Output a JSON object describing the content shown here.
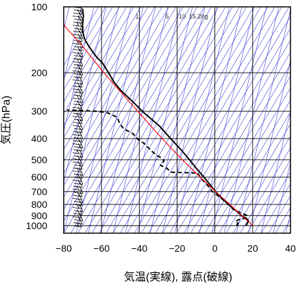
{
  "chart_data": {
    "type": "line",
    "subtype": "skew-t log-p sounding",
    "xlabel": "気温(実線), 露点(破線)",
    "ylabel": "気圧(hPa)",
    "xlim": [
      -80,
      40
    ],
    "ylim": [
      1050,
      100
    ],
    "y_scale": "log",
    "x_ticks": [
      -80,
      -60,
      -40,
      -20,
      0,
      20,
      40
    ],
    "x_tick_labels": [
      "−80",
      "−60",
      "−40",
      "−20",
      "0",
      "20",
      "40"
    ],
    "y_ticks": [
      100,
      200,
      300,
      400,
      500,
      600,
      700,
      800,
      900,
      1000
    ],
    "y_tick_labels": [
      "100",
      "200",
      "300",
      "400",
      "500",
      "600",
      "700",
      "800",
      "900",
      "1000"
    ],
    "mixing_ratio_labels": [
      "1",
      "5",
      "10",
      "15",
      "20g"
    ],
    "grid": true,
    "colors": {
      "temperature": "#000000",
      "dewpoint": "#000000",
      "parcel": "#ff0000",
      "guide_lines": "#3a3ad6",
      "grid": "#000000"
    },
    "series": [
      {
        "role": "temperature",
        "style": "solid",
        "points": [
          [
            1000,
            16.5
          ],
          [
            950,
            17.8
          ],
          [
            925,
            16.5
          ],
          [
            900,
            14.0
          ],
          [
            850,
            11.0
          ],
          [
            800,
            7.2
          ],
          [
            750,
            3.8
          ],
          [
            700,
            0.4
          ],
          [
            650,
            -2.6
          ],
          [
            600,
            -5.8
          ],
          [
            550,
            -9.6
          ],
          [
            500,
            -13.4
          ],
          [
            450,
            -17.9
          ],
          [
            400,
            -23.4
          ],
          [
            350,
            -29.4
          ],
          [
            300,
            -38.4
          ],
          [
            270,
            -43.7
          ],
          [
            240,
            -50.0
          ],
          [
            220,
            -53.5
          ],
          [
            200,
            -56.3
          ],
          [
            180,
            -59.6
          ],
          [
            170,
            -62.5
          ],
          [
            160,
            -64.8
          ],
          [
            150,
            -67.0
          ],
          [
            140,
            -69.0
          ],
          [
            130,
            -69.9
          ],
          [
            120,
            -70.0
          ],
          [
            110,
            -69.6
          ],
          [
            102,
            -70.0
          ]
        ]
      },
      {
        "role": "dewpoint",
        "style": "dashed",
        "points": [
          [
            1000,
            11.5
          ],
          [
            975,
            12.2
          ],
          [
            960,
            10.8
          ],
          [
            940,
            12.4
          ],
          [
            925,
            16.2
          ],
          [
            900,
            17.3
          ],
          [
            870,
            13.1
          ],
          [
            850,
            10.3
          ],
          [
            800,
            7.1
          ],
          [
            750,
            3.4
          ],
          [
            700,
            -1.2
          ],
          [
            650,
            -4.2
          ],
          [
            600,
            -7.9
          ],
          [
            575,
            -9.0
          ],
          [
            570,
            -23.3
          ],
          [
            545,
            -25.6
          ],
          [
            530,
            -28.8
          ],
          [
            520,
            -27.8
          ],
          [
            505,
            -26.9
          ],
          [
            490,
            -28.2
          ],
          [
            480,
            -30.3
          ],
          [
            460,
            -33.0
          ],
          [
            440,
            -35.3
          ],
          [
            420,
            -37.6
          ],
          [
            405,
            -40.5
          ],
          [
            395,
            -41.6
          ],
          [
            380,
            -43.3
          ],
          [
            360,
            -48.4
          ],
          [
            340,
            -50.5
          ],
          [
            320,
            -51.6
          ],
          [
            305,
            -56.7
          ],
          [
            300,
            -62.8
          ],
          [
            298,
            -69.3
          ],
          [
            296,
            -78.2
          ]
        ]
      },
      {
        "role": "parcel",
        "style": "solid",
        "points": [
          [
            1000,
            20.2
          ],
          [
            900,
            14.1
          ],
          [
            800,
            7.9
          ],
          [
            700,
            0.5
          ],
          [
            600,
            -7.8
          ],
          [
            500,
            -17.2
          ],
          [
            400,
            -27.9
          ],
          [
            300,
            -40.8
          ],
          [
            200,
            -58.8
          ],
          [
            150,
            -70.4
          ],
          [
            125,
            -78.6
          ],
          [
            120,
            -80.0
          ]
        ]
      }
    ],
    "wind_barbs": {
      "count": 73,
      "pressure_range": [
        1000,
        100
      ],
      "position": "left"
    }
  }
}
